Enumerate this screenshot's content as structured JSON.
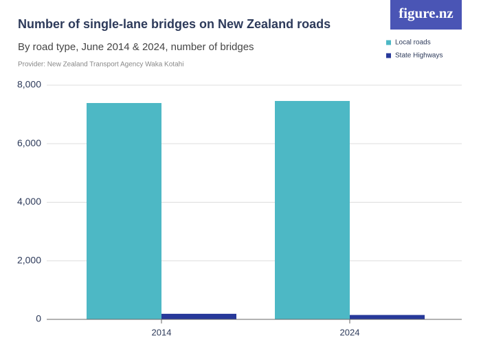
{
  "logo": "figure.nz",
  "chart_data": {
    "type": "bar",
    "title": "Number of single-lane bridges on New Zealand roads",
    "subtitle": "By road type, June 2014 & 2024,  number of bridges",
    "provider": "Provider: New Zealand Transport Agency Waka Kotahi",
    "categories": [
      "2014",
      "2024"
    ],
    "series": [
      {
        "name": "Local roads",
        "color": "#4db8c5",
        "values": [
          7390,
          7460
        ]
      },
      {
        "name": "State Highways",
        "color": "#27399a",
        "values": [
          190,
          150
        ]
      }
    ],
    "ylim": [
      0,
      8000
    ],
    "yticks": [
      0,
      {
        "value": 2000,
        "label": "2,000"
      },
      {
        "value": 4000,
        "label": "4,000"
      },
      {
        "value": 6000,
        "label": "6,000"
      },
      {
        "value": 8000,
        "label": "8,000"
      }
    ],
    "grid": true
  }
}
